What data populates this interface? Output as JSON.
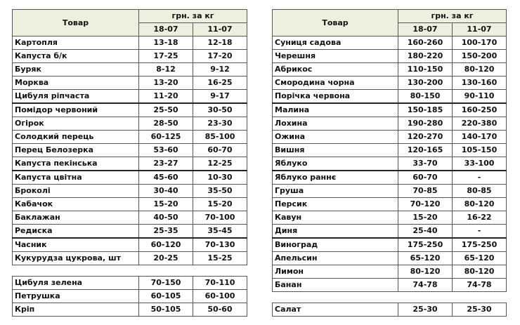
{
  "header": {
    "product": "Товар",
    "unit": "грн. за кг",
    "date1": "18-07",
    "date2": "11-07"
  },
  "left_table": {
    "rows": [
      [
        "Картопля",
        "13-18",
        "12-18"
      ],
      [
        "Капуста б/к",
        "17-25",
        "17-20"
      ],
      [
        "Буряк",
        "8-12",
        "9-12"
      ],
      [
        "Морква",
        "13-20",
        "16-25"
      ],
      [
        "Цибуля ріпчаста",
        "11-20",
        "9-17"
      ],
      [
        "Помідор червоний",
        "25-50",
        "30-50"
      ],
      [
        "Огірок",
        "28-50",
        "23-30"
      ],
      [
        "Солодкий перець",
        "60-125",
        "85-100"
      ],
      [
        "Перец Белозерка",
        "53-60",
        "60-70"
      ],
      [
        "Капуста пекінська",
        "23-27",
        "12-25"
      ],
      [
        "Капуста цвітна",
        "45-60",
        "10-30"
      ],
      [
        "Броколі",
        "30-40",
        "35-50"
      ],
      [
        "Кабачок",
        "15-20",
        "15-20"
      ],
      [
        "Баклажан",
        "40-50",
        "70-100"
      ],
      [
        "Редиска",
        "25-35",
        "35-45"
      ],
      [
        "Часник",
        "60-120",
        "70-130"
      ],
      [
        "Кукурудза цукрова, шт",
        "20-25",
        "15-25"
      ]
    ],
    "extra_rows": [
      [
        "Цибуля зелена",
        "70-150",
        "70-110"
      ],
      [
        "Петрушка",
        "60-105",
        "60-100"
      ],
      [
        "Кріп",
        "50-105",
        "50-60"
      ]
    ]
  },
  "right_table": {
    "rows": [
      [
        "Суниця садова",
        "160-260",
        "100-170"
      ],
      [
        "Черешня",
        "180-220",
        "150-200"
      ],
      [
        "Абрикос",
        "110-150",
        "80-120"
      ],
      [
        "Смородина чорна",
        "130-200",
        "130-160"
      ],
      [
        "Порічка червона",
        "80-150",
        "90-110"
      ],
      [
        "Малина",
        "150-185",
        "160-250"
      ],
      [
        "Лохина",
        "190-280",
        "220-380"
      ],
      [
        "Ожина",
        "120-270",
        "140-170"
      ],
      [
        "Вишня",
        "120-165",
        "105-150"
      ],
      [
        "Яблуко",
        "33-70",
        "33-100"
      ],
      [
        "Яблуко раннє",
        "60-70",
        "-"
      ],
      [
        "Груша",
        "70-85",
        "80-85"
      ],
      [
        "Персик",
        "70-120",
        "80-120"
      ],
      [
        "Кавун",
        "15-20",
        "16-22"
      ],
      [
        "Диня",
        "25-40",
        "-"
      ],
      [
        "Виноград",
        "175-250",
        "175-250"
      ],
      [
        "Апельсин",
        "65-120",
        "65-120"
      ],
      [
        "Лимон",
        "80-120",
        "80-120"
      ],
      [
        "Банан",
        "74-78",
        "74-78"
      ]
    ],
    "extra_rows": [
      [
        "Салат",
        "25-30",
        "25-30"
      ]
    ]
  },
  "colors": {
    "header_bg": "#ebf1de",
    "border": "#555555"
  }
}
